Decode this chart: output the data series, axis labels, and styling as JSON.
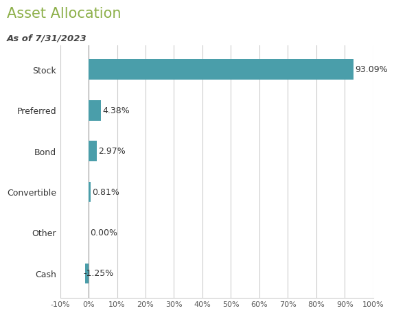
{
  "title": "Asset Allocation",
  "subtitle": "As of 7/31/2023",
  "title_color": "#8db04a",
  "subtitle_color": "#444444",
  "categories": [
    "Stock",
    "Preferred",
    "Bond",
    "Convertible",
    "Other",
    "Cash"
  ],
  "values": [
    93.09,
    4.38,
    2.97,
    0.81,
    0.0,
    -1.25
  ],
  "labels": [
    "93.09%",
    "4.38%",
    "2.97%",
    "0.81%",
    "0.00%",
    "-1.25%"
  ],
  "bar_color": "#4a9eaa",
  "xlim": [
    -10,
    100
  ],
  "xticks": [
    -10,
    0,
    10,
    20,
    30,
    40,
    50,
    60,
    70,
    80,
    90,
    100
  ],
  "xtick_labels": [
    "-10%",
    "0%",
    "10%",
    "20%",
    "30%",
    "40%",
    "50%",
    "60%",
    "70%",
    "80%",
    "90%",
    "100%"
  ],
  "background_color": "#ffffff",
  "plot_background_color": "#ffffff",
  "outer_background_color": "#efefef",
  "grid_color": "#cccccc",
  "label_fontsize": 9,
  "tick_fontsize": 8,
  "title_fontsize": 15,
  "subtitle_fontsize": 9.5,
  "bar_height": 0.5
}
